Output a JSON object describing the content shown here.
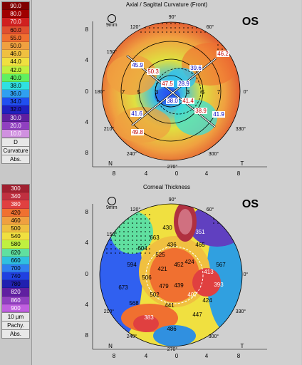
{
  "top_map": {
    "title": "Axial / Sagittal Curvature (Front)",
    "eye": "OS",
    "scale": "9mm",
    "legend": [
      "90.0",
      "80.0",
      "70.0",
      "60.0",
      "55.0",
      "50.0",
      "46.0",
      "44.0",
      "42.0",
      "40.0",
      "38.0",
      "36.0",
      "34.0",
      "32.0",
      "30.0",
      "20.0",
      "10.0"
    ],
    "legend_colors": [
      "#800000",
      "#a00000",
      "#d02020",
      "#e05030",
      "#f07030",
      "#f0a040",
      "#f0c040",
      "#f0e040",
      "#c0f040",
      "#60f060",
      "#30e0e0",
      "#30a0f0",
      "#2050f0",
      "#2020c0",
      "#6020a0",
      "#9040c0",
      "#d090e0"
    ],
    "legend_step": "D",
    "legend_type": "Curvature",
    "legend_mode": "Abs.",
    "values": [
      "46.2",
      "45.9",
      "50.3",
      "39.6",
      "47.5",
      "28.9",
      "38.0",
      "41.4",
      "41.6",
      "38.9",
      "41.9",
      "49.8"
    ],
    "angle_labels": [
      "90°",
      "60°",
      "120°",
      "150°",
      "180°",
      "0°",
      "210°",
      "330°",
      "240°",
      "300°",
      "270°"
    ],
    "ring_labels": [
      "5",
      "5",
      "3",
      "3",
      "7",
      "7"
    ],
    "y_ticks": [
      "8",
      "4",
      "0",
      "4",
      "8"
    ],
    "x_ticks": [
      "8",
      "4",
      "0",
      "4",
      "8"
    ],
    "nasal": "N",
    "temporal": "T"
  },
  "bottom_map": {
    "title": "Corneal Thickness",
    "eye": "OS",
    "scale": "9mm",
    "legend": [
      "300",
      "340",
      "380",
      "420",
      "460",
      "500",
      "540",
      "580",
      "620",
      "660",
      "700",
      "740",
      "780",
      "820",
      "860",
      "900"
    ],
    "legend_colors": [
      "#a02030",
      "#c03040",
      "#e04040",
      "#f07030",
      "#f0a040",
      "#f0c040",
      "#f0e040",
      "#c0f040",
      "#60e0a0",
      "#30c0e0",
      "#3080f0",
      "#2040e0",
      "#2020b0",
      "#6020a0",
      "#9040c0",
      "#c060e0"
    ],
    "legend_step": "10 µm",
    "legend_type": "Pachy.",
    "legend_mode": "Abs.",
    "values": [
      "430",
      "351",
      "663",
      "436",
      "465",
      "604",
      "525",
      "424",
      "594",
      "452",
      "421",
      "413",
      "567",
      "506",
      "479",
      "439",
      "393",
      "673",
      "502",
      "407",
      "424",
      "568",
      "441",
      "383",
      "447",
      "486"
    ],
    "angle_labels": [
      "90°",
      "60°",
      "120°",
      "150°",
      "0°",
      "210°",
      "330°",
      "240°",
      "300°",
      "270°"
    ],
    "y_ticks": [
      "8",
      "4",
      "0",
      "4",
      "8"
    ],
    "x_ticks": [
      "8",
      "4",
      "0",
      "4",
      "8"
    ],
    "nasal": "N",
    "temporal": "T"
  }
}
